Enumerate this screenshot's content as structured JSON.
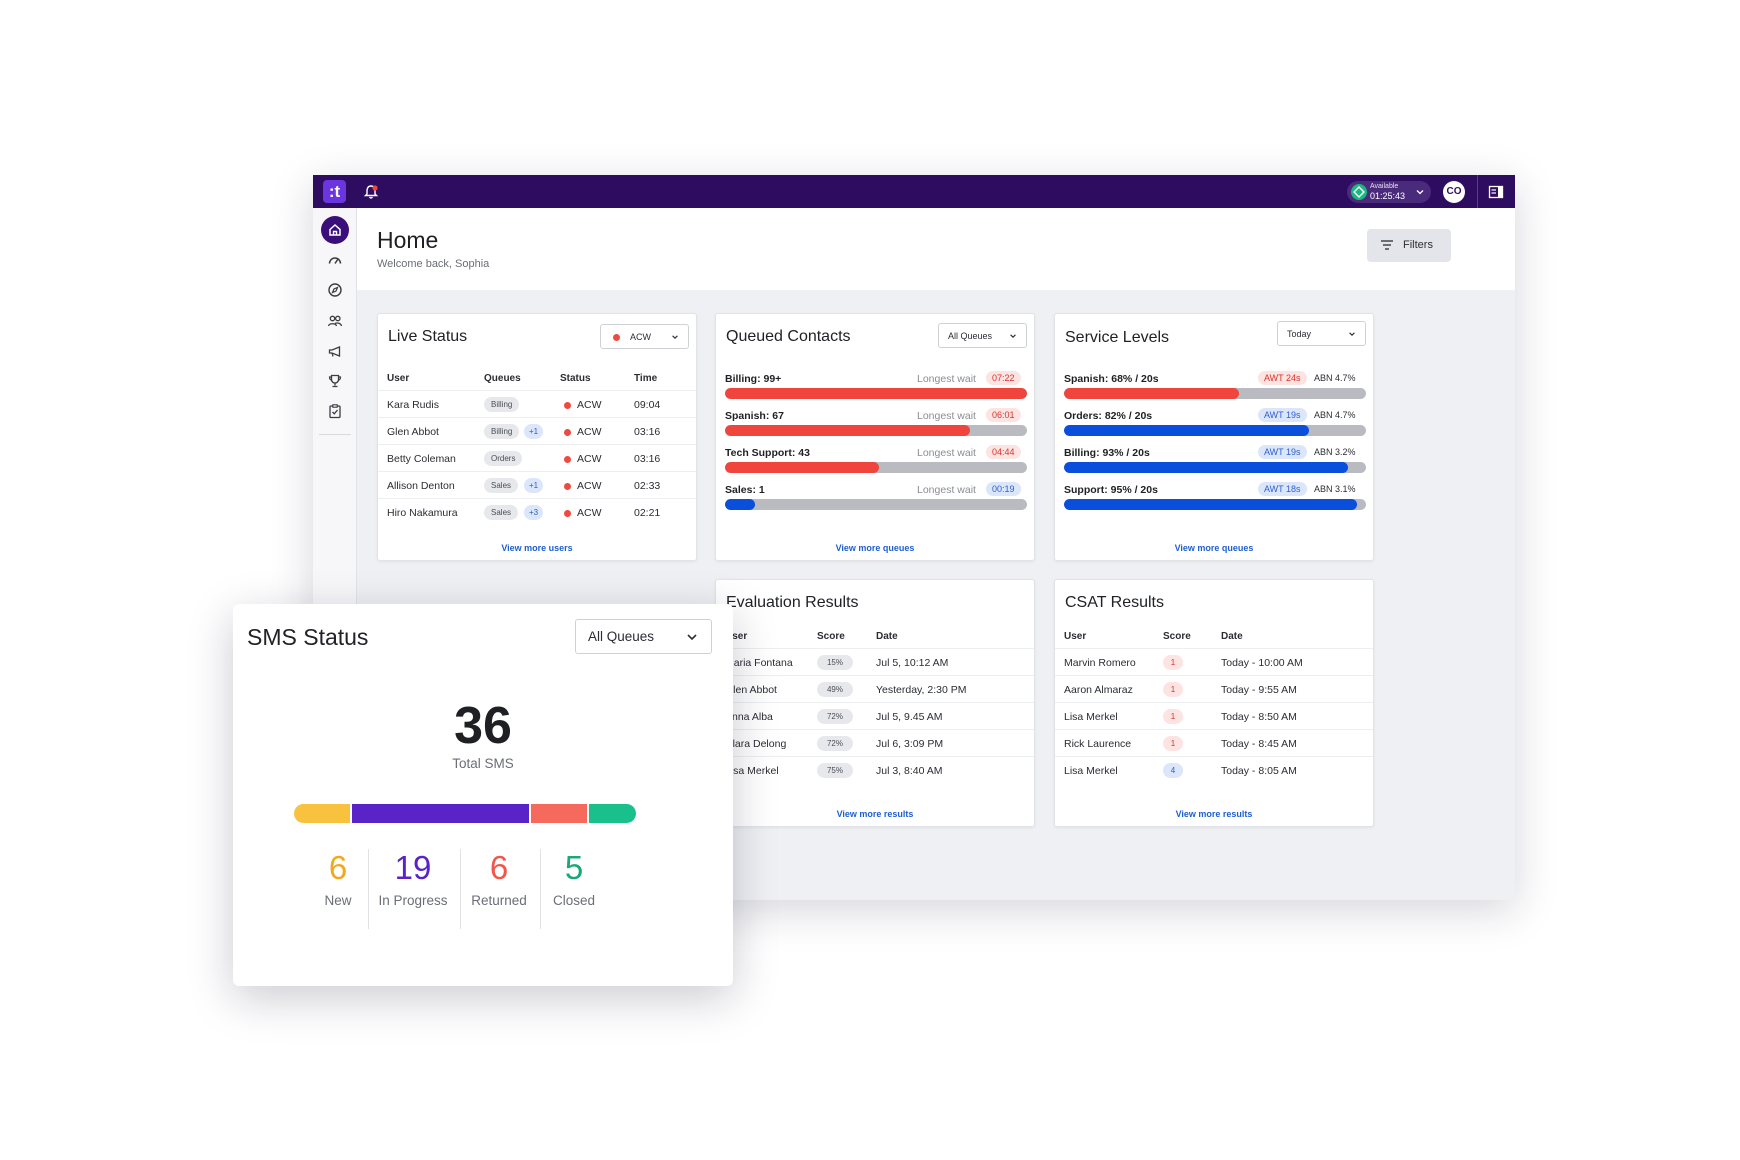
{
  "topbar": {
    "logo": ":t",
    "status_label": "Available",
    "status_time": "01:25:43",
    "avatar_initials": "CO"
  },
  "header": {
    "title": "Home",
    "subtitle": "Welcome back, Sophia",
    "filters_label": "Filters"
  },
  "live_status": {
    "title": "Live Status",
    "filter": "ACW",
    "columns": [
      "User",
      "Queues",
      "Status",
      "Time"
    ],
    "rows": [
      {
        "user": "Kara Rudis",
        "queue": "Billing",
        "extra": "",
        "status": "ACW",
        "time": "09:04"
      },
      {
        "user": "Glen Abbot",
        "queue": "Billing",
        "extra": "+1",
        "status": "ACW",
        "time": "03:16"
      },
      {
        "user": "Betty Coleman",
        "queue": "Orders",
        "extra": "",
        "status": "ACW",
        "time": "03:16"
      },
      {
        "user": "Allison Denton",
        "queue": "Sales",
        "extra": "+1",
        "status": "ACW",
        "time": "02:33"
      },
      {
        "user": "Hiro Nakamura",
        "queue": "Sales",
        "extra": "+3",
        "status": "ACW",
        "time": "02:21"
      }
    ],
    "more_link": "View more users"
  },
  "queued_contacts": {
    "title": "Queued Contacts",
    "filter": "All Queues",
    "wait_label": "Longest wait",
    "items": [
      {
        "label": "Billing: 99+",
        "wait": "07:22",
        "wait_color": "red",
        "fill": 1.0,
        "bar_color": "#f0453d"
      },
      {
        "label": "Spanish: 67",
        "wait": "06:01",
        "wait_color": "red",
        "fill": 0.81,
        "bar_color": "#f0453d"
      },
      {
        "label": "Tech Support: 43",
        "wait": "04:44",
        "wait_color": "red",
        "fill": 0.51,
        "bar_color": "#f0453d"
      },
      {
        "label": "Sales: 1",
        "wait": "00:19",
        "wait_color": "blue",
        "fill": 0.1,
        "bar_color": "#0a4fdc"
      }
    ],
    "more_link": "View more queues"
  },
  "service_levels": {
    "title": "Service Levels",
    "filter": "Today",
    "items": [
      {
        "label": "Spanish: 68% / 20s",
        "awt": "AWT 24s",
        "awt_color": "red",
        "abn": "ABN 4.7%",
        "fill": 0.58,
        "bar_color": "#f0453d"
      },
      {
        "label": "Orders: 82% / 20s",
        "awt": "AWT 19s",
        "awt_color": "blue",
        "abn": "ABN 4.7%",
        "fill": 0.81,
        "bar_color": "#0a4fdc"
      },
      {
        "label": "Billing: 93% / 20s",
        "awt": "AWT 19s",
        "awt_color": "blue",
        "abn": "ABN 3.2%",
        "fill": 0.94,
        "bar_color": "#0a4fdc"
      },
      {
        "label": "Support: 95% / 20s",
        "awt": "AWT 18s",
        "awt_color": "blue",
        "abn": "ABN 3.1%",
        "fill": 0.97,
        "bar_color": "#0a4fdc"
      }
    ],
    "more_link": "View more queues"
  },
  "evaluation_results": {
    "title": "Evaluation Results",
    "columns": [
      "User",
      "Score",
      "Date"
    ],
    "rows": [
      {
        "user": "Maria Fontana",
        "score": "15%",
        "date": "Jul 5, 10:12 AM"
      },
      {
        "user": "Glen Abbot",
        "score": "49%",
        "date": "Yesterday, 2:30 PM"
      },
      {
        "user": "Anna Alba",
        "score": "72%",
        "date": "Jul 5, 9.45 AM"
      },
      {
        "user": "Clara Delong",
        "score": "72%",
        "date": "Jul 6, 3:09 PM"
      },
      {
        "user": "Lisa Merkel",
        "score": "75%",
        "date": "Jul 3, 8:40 AM"
      }
    ],
    "more_link": "View more results"
  },
  "csat_results": {
    "title": "CSAT Results",
    "columns": [
      "User",
      "Score",
      "Date"
    ],
    "rows": [
      {
        "user": "Marvin Romero",
        "score": "1",
        "score_color": "red",
        "date": "Today - 10:00 AM"
      },
      {
        "user": "Aaron Almaraz",
        "score": "1",
        "score_color": "red",
        "date": "Today - 9:55 AM"
      },
      {
        "user": "Lisa Merkel",
        "score": "1",
        "score_color": "red",
        "date": "Today - 8:50 AM"
      },
      {
        "user": "Rick Laurence",
        "score": "1",
        "score_color": "red",
        "date": "Today - 8:45 AM"
      },
      {
        "user": "Lisa Merkel",
        "score": "4",
        "score_color": "blue",
        "date": "Today - 8:05 AM"
      }
    ],
    "more_link": "View more results"
  },
  "sms_status": {
    "title": "SMS Status",
    "filter": "All Queues",
    "total": "36",
    "total_label": "Total SMS",
    "stats": [
      {
        "value": "6",
        "label": "New",
        "color": "#f2a81d",
        "bar_color": "#f8c23e"
      },
      {
        "value": "19",
        "label": "In Progress",
        "color": "#5a23c8",
        "bar_color": "#5a23c8"
      },
      {
        "value": "6",
        "label": "Returned",
        "color": "#f0574a",
        "bar_color": "#f56a5d"
      },
      {
        "value": "5",
        "label": "Closed",
        "color": "#1aa77a",
        "bar_color": "#19c08c"
      }
    ]
  },
  "colors": {
    "topbar": "#2e0d60",
    "accent": "#3b0f7a",
    "link": "#1f5fd1"
  }
}
